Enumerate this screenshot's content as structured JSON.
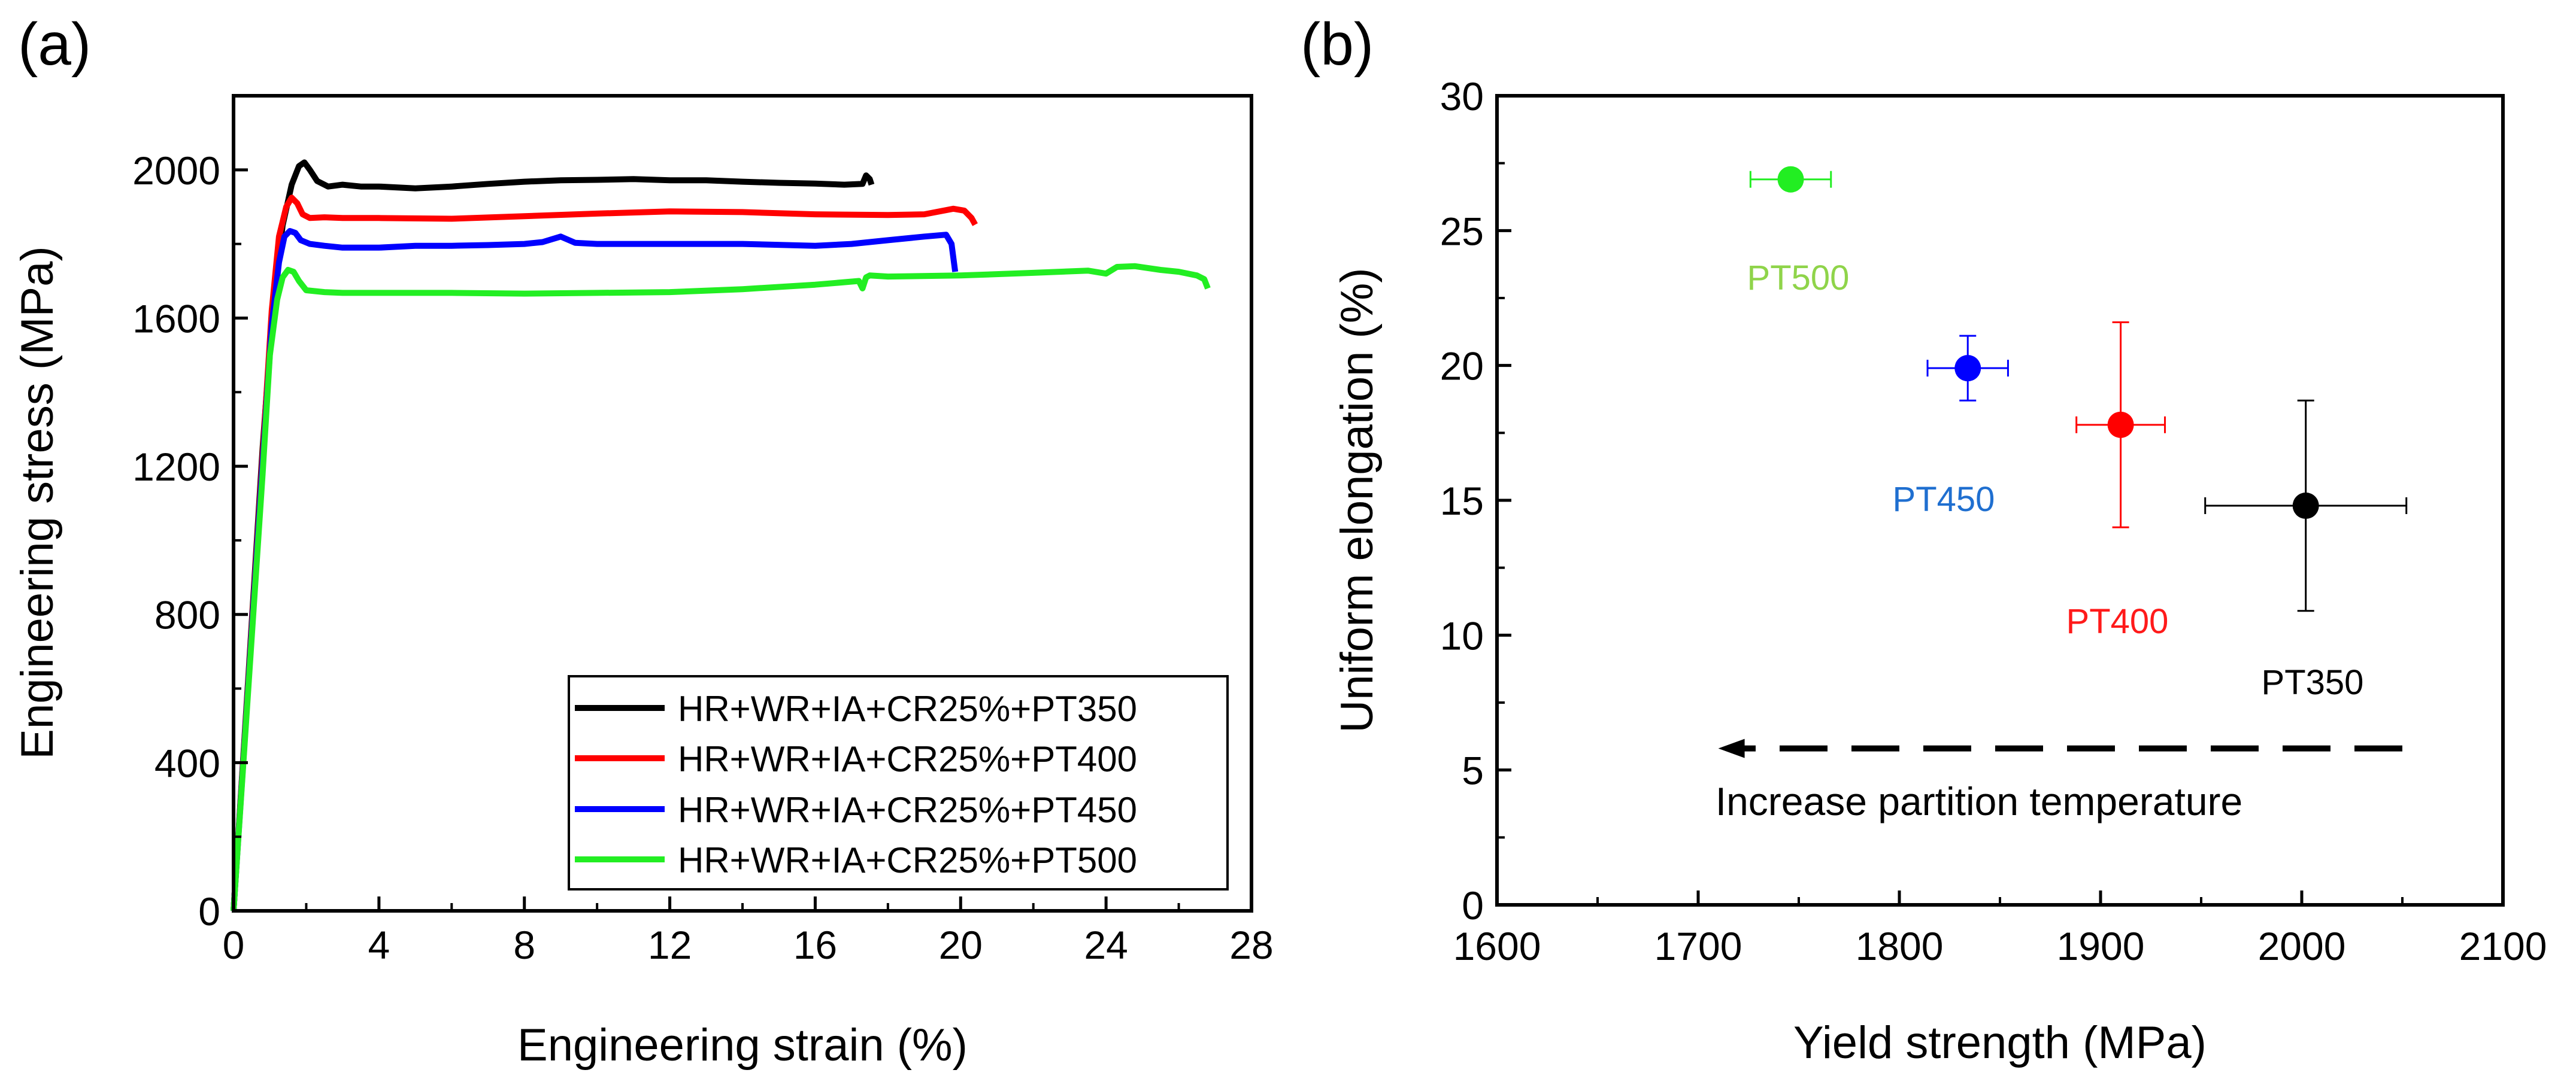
{
  "colors": {
    "pt350": "#000000",
    "pt400": "#ff0000",
    "pt450": "#0000ff",
    "pt500": "#22ee22",
    "label_pt350": "#000000",
    "label_pt400": "#ff1a1a",
    "label_pt450": "#1f6fd0",
    "label_pt500": "#8fd44a",
    "axis": "#000000"
  },
  "chart_data": [
    {
      "panel_label": "(a)",
      "type": "line",
      "title": "",
      "xlabel": "Engineering strain (%)",
      "ylabel": "Engineering stress (MPa)",
      "xlim": [
        0,
        28
      ],
      "ylim": [
        0,
        2200
      ],
      "xticks": [
        "0",
        "4",
        "8",
        "12",
        "16",
        "20",
        "24",
        "28"
      ],
      "yticks": [
        "0",
        "400",
        "800",
        "1200",
        "1600",
        "2000"
      ],
      "legend_position": "bottom-right",
      "series": [
        {
          "name": "HR+WR+IA+CR25%+PT350",
          "color_key": "pt350",
          "x": [
            0,
            0.4,
            0.8,
            1.1,
            1.35,
            1.6,
            1.8,
            1.95,
            2.1,
            2.3,
            2.6,
            3.0,
            3.5,
            4.0,
            5.0,
            6.0,
            7.0,
            8.0,
            9.0,
            10.0,
            11.0,
            12.0,
            13.0,
            14.0,
            15.0,
            16.0,
            16.8,
            17.3,
            17.4,
            17.5,
            17.55
          ],
          "y": [
            0,
            620,
            1250,
            1650,
            1850,
            1960,
            2010,
            2020,
            2000,
            1970,
            1955,
            1960,
            1955,
            1955,
            1950,
            1955,
            1962,
            1968,
            1972,
            1973,
            1975,
            1972,
            1972,
            1968,
            1965,
            1963,
            1960,
            1962,
            1985,
            1975,
            1960
          ]
        },
        {
          "name": "HR+WR+IA+CR25%+PT400",
          "color_key": "pt400",
          "x": [
            0,
            0.4,
            0.8,
            1.05,
            1.25,
            1.45,
            1.6,
            1.75,
            1.9,
            2.1,
            2.5,
            3.0,
            4.0,
            6.0,
            8.0,
            10.0,
            12.0,
            14.0,
            16.0,
            18.0,
            19.0,
            19.8,
            20.1,
            20.3,
            20.4
          ],
          "y": [
            0,
            610,
            1230,
            1620,
            1820,
            1900,
            1925,
            1910,
            1880,
            1870,
            1872,
            1870,
            1870,
            1868,
            1875,
            1882,
            1888,
            1886,
            1880,
            1878,
            1880,
            1895,
            1890,
            1870,
            1852
          ]
        },
        {
          "name": "HR+WR+IA+CR25%+PT450",
          "color_key": "pt450",
          "x": [
            0,
            0.4,
            0.8,
            1.05,
            1.25,
            1.4,
            1.55,
            1.7,
            1.85,
            2.1,
            2.5,
            3.0,
            4.0,
            5.0,
            6.0,
            7.0,
            8.0,
            8.5,
            9.0,
            9.4,
            10.0,
            12.0,
            14.0,
            16.0,
            17.0,
            18.0,
            19.0,
            19.6,
            19.75,
            19.85
          ],
          "y": [
            0,
            600,
            1210,
            1580,
            1750,
            1820,
            1835,
            1830,
            1810,
            1800,
            1795,
            1790,
            1790,
            1795,
            1795,
            1797,
            1800,
            1805,
            1820,
            1803,
            1800,
            1800,
            1800,
            1795,
            1800,
            1810,
            1820,
            1825,
            1800,
            1725
          ]
        },
        {
          "name": "HR+WR+IA+CR25%+PT500",
          "color_key": "pt500",
          "x": [
            0,
            0.4,
            0.8,
            1.0,
            1.2,
            1.35,
            1.5,
            1.65,
            1.8,
            2.0,
            2.5,
            3.0,
            4.0,
            6.0,
            8.0,
            10.0,
            12.0,
            14.0,
            16.0,
            17.2,
            17.3,
            17.4,
            17.5,
            18.0,
            20.0,
            22.0,
            23.5,
            24.0,
            24.3,
            24.8,
            25.5,
            26.0,
            26.5,
            26.7,
            26.8
          ],
          "y": [
            0,
            590,
            1180,
            1500,
            1650,
            1710,
            1730,
            1725,
            1700,
            1675,
            1670,
            1668,
            1668,
            1668,
            1666,
            1668,
            1670,
            1678,
            1690,
            1700,
            1680,
            1710,
            1715,
            1712,
            1715,
            1722,
            1728,
            1720,
            1738,
            1740,
            1730,
            1725,
            1715,
            1705,
            1680
          ]
        }
      ]
    },
    {
      "panel_label": "(b)",
      "type": "scatter",
      "title": "",
      "xlabel": "Yield strength (MPa)",
      "ylabel": "Uniform elongation (%)",
      "xlim": [
        1600,
        2100
      ],
      "ylim": [
        0,
        30
      ],
      "xticks": [
        "1600",
        "1700",
        "1800",
        "1900",
        "2000",
        "2100"
      ],
      "yticks": [
        "0",
        "5",
        "10",
        "15",
        "20",
        "25",
        "30"
      ],
      "points": [
        {
          "label": "PT350",
          "color_key": "pt350",
          "label_color_key": "label_pt350",
          "x": 2002,
          "y": 14.8,
          "xerr": 50,
          "yerr_low": 3.9,
          "yerr_high": 3.9
        },
        {
          "label": "PT400",
          "color_key": "pt400",
          "label_color_key": "label_pt400",
          "x": 1910,
          "y": 17.8,
          "xerr": 22,
          "yerr_low": 3.8,
          "yerr_high": 3.8
        },
        {
          "label": "PT450",
          "color_key": "pt450",
          "label_color_key": "label_pt450",
          "x": 1834,
          "y": 19.9,
          "xerr": 20,
          "yerr_low": 1.2,
          "yerr_high": 1.2
        },
        {
          "label": "PT500",
          "color_key": "pt500",
          "label_color_key": "label_pt500",
          "x": 1746,
          "y": 26.9,
          "xerr": 20,
          "yerr_low": 0.3,
          "yerr_high": 0.3
        }
      ],
      "annotation": {
        "text": "Increase partition temperature",
        "arrow_from_x": 2050,
        "arrow_to_x": 1710,
        "arrow_y": 5.8
      }
    }
  ]
}
